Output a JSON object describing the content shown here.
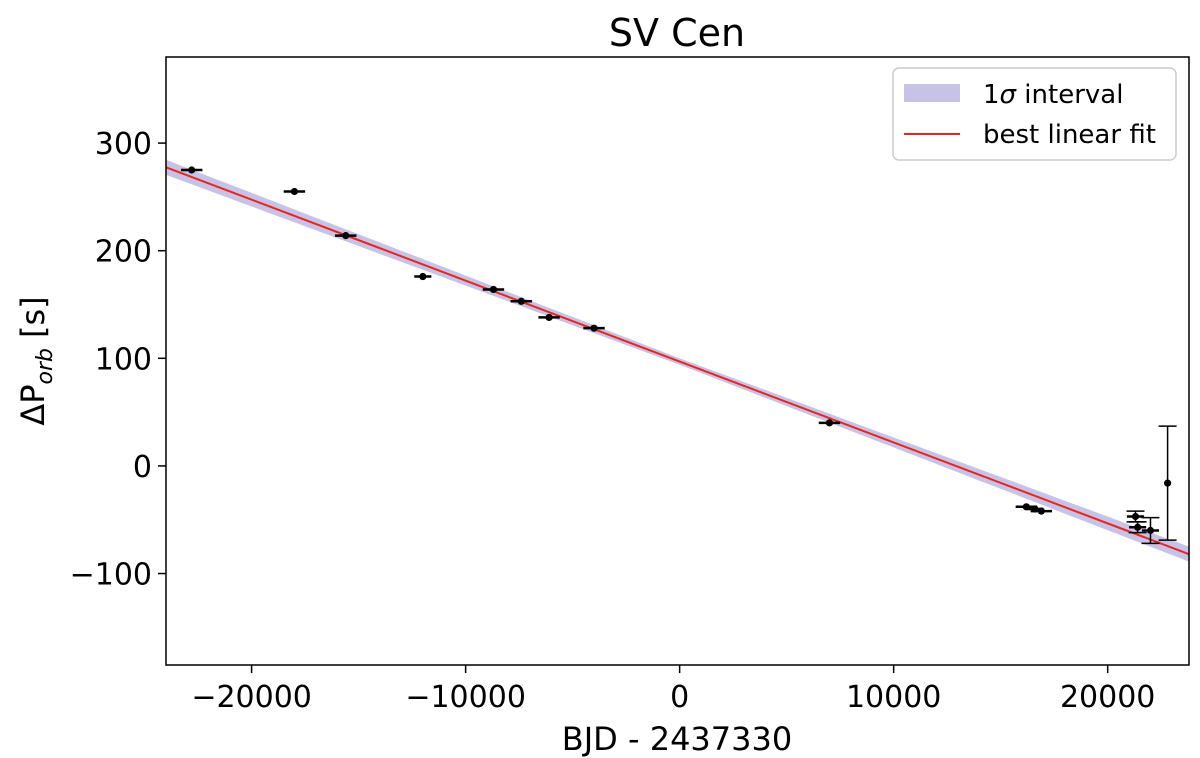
{
  "chart_data": {
    "type": "scatter",
    "title": "SV Cen",
    "xlabel": "BJD - 2437330",
    "ylabel_prefix": "ΔP",
    "ylabel_sub": "orb",
    "ylabel_unit": "[s]",
    "xlim": [
      -24000,
      23800
    ],
    "ylim": [
      -185,
      380
    ],
    "xticks": [
      -20000,
      -10000,
      0,
      10000,
      20000
    ],
    "xtick_labels": [
      "−20000",
      "−10000",
      "0",
      "10000",
      "20000"
    ],
    "yticks": [
      -100,
      0,
      100,
      200,
      300
    ],
    "ytick_labels": [
      "−100",
      "0",
      "100",
      "200",
      "300"
    ],
    "grid": false,
    "legend_position": "top-right",
    "legend": {
      "band_prefix": "1",
      "band_sigma": "σ",
      "band_suffix": " interval",
      "line": "best linear fit"
    },
    "fit": {
      "slope": -0.00752,
      "intercept": 97,
      "band_halfwidth_center": 3,
      "band_halfwidth_edge": 7,
      "band_color": "#c7c3e6",
      "line_color": "#e8251f"
    },
    "points": [
      {
        "x": -22800,
        "y": 275,
        "xerr": 500,
        "yerr": 2
      },
      {
        "x": -18000,
        "y": 255,
        "xerr": 500,
        "yerr": 2
      },
      {
        "x": -15600,
        "y": 214,
        "xerr": 500,
        "yerr": 2
      },
      {
        "x": -12000,
        "y": 176,
        "xerr": 400,
        "yerr": 2
      },
      {
        "x": -8700,
        "y": 164,
        "xerr": 500,
        "yerr": 2
      },
      {
        "x": -7400,
        "y": 153,
        "xerr": 500,
        "yerr": 2
      },
      {
        "x": -6100,
        "y": 138,
        "xerr": 500,
        "yerr": 2
      },
      {
        "x": -4000,
        "y": 128,
        "xerr": 500,
        "yerr": 2
      },
      {
        "x": 7000,
        "y": 40,
        "xerr": 500,
        "yerr": 2
      },
      {
        "x": 16200,
        "y": -38,
        "xerr": 500,
        "yerr": 2
      },
      {
        "x": 16600,
        "y": -40,
        "xerr": 400,
        "yerr": 2
      },
      {
        "x": 16900,
        "y": -42,
        "xerr": 500,
        "yerr": 2
      },
      {
        "x": 21300,
        "y": -47,
        "xerr": 400,
        "yerr": 5
      },
      {
        "x": 21400,
        "y": -57,
        "xerr": 400,
        "yerr": 5
      },
      {
        "x": 22000,
        "y": -60,
        "xerr": 400,
        "yerr": 12
      },
      {
        "x": 22800,
        "y": -16,
        "xerr": 0,
        "yerr": 53
      }
    ]
  }
}
